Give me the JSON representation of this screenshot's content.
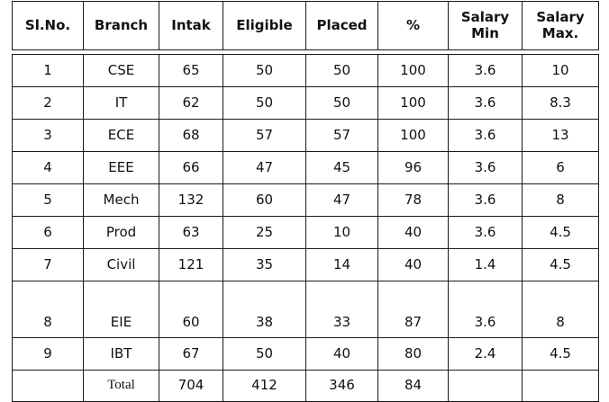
{
  "headers": [
    "Sl.No.",
    "Branch",
    "Intak",
    "Eligible",
    "Placed",
    "%",
    "Salary Min",
    "Salary Max."
  ],
  "rows": [
    [
      "1",
      "CSE",
      "65",
      "50",
      "50",
      "100",
      "3.6",
      "10"
    ],
    [
      "2",
      "IT",
      "62",
      "50",
      "50",
      "100",
      "3.6",
      "8.3"
    ],
    [
      "3",
      "ECE",
      "68",
      "57",
      "57",
      "100",
      "3.6",
      "13"
    ],
    [
      "4",
      "EEE",
      "66",
      "47",
      "45",
      "96",
      "3.6",
      "6"
    ],
    [
      "5",
      "Mech",
      "132",
      "60",
      "47",
      "78",
      "3.6",
      "8"
    ],
    [
      "6",
      "Prod",
      "63",
      "25",
      "10",
      "40",
      "3.6",
      "4.5"
    ],
    [
      "7",
      "Civil",
      "121",
      "35",
      "14",
      "40",
      "1.4",
      "4.5"
    ],
    [
      "8",
      "EIE",
      "60",
      "38",
      "33",
      "87",
      "3.6",
      "8"
    ],
    [
      "9",
      "IBT",
      "67",
      "50",
      "40",
      "80",
      "2.4",
      "4.5"
    ]
  ],
  "total": [
    "",
    "Total",
    "704",
    "412",
    "346",
    "84",
    "",
    ""
  ]
}
